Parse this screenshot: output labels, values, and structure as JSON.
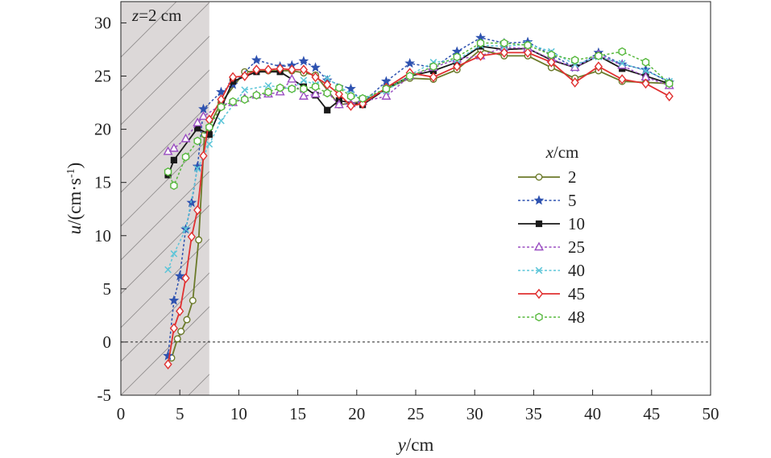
{
  "chart_data": {
    "type": "line",
    "xlabel_var": "y",
    "xlabel_unit": "/cm",
    "ylabel_var": "u",
    "ylabel_unit_main": "/(cm·s",
    "ylabel_unit_sup": "-1",
    "ylabel_unit_close": ")",
    "xlim": [
      0,
      50
    ],
    "ylim": [
      -5,
      32
    ],
    "xticks": [
      0,
      5,
      10,
      15,
      20,
      25,
      30,
      35,
      40,
      45,
      50
    ],
    "yticks": [
      -5,
      0,
      5,
      10,
      15,
      20,
      25,
      30
    ],
    "xtick_labels": [
      "0",
      "5",
      "10",
      "15",
      "20",
      "25",
      "30",
      "35",
      "40",
      "45",
      "50"
    ],
    "ytick_labels": [
      "-5",
      "0",
      "5",
      "10",
      "15",
      "20",
      "25",
      "30"
    ],
    "zero_line": 0,
    "shaded_region": {
      "x_from": 0,
      "x_to": 7.5,
      "label_var": "z",
      "label_rest": "=2 cm"
    },
    "legend_title_var": "x",
    "legend_title_unit": "/cm",
    "series": [
      {
        "name": "2",
        "color": "#6b7a2a",
        "dash": "solid",
        "marker": "circle",
        "x": [
          4.3,
          4.8,
          5.1,
          5.6,
          6.1,
          6.6,
          7.1,
          8.5,
          10.5,
          12.5,
          14.5,
          15.5,
          16.5,
          18.5,
          20.5,
          22.5,
          24.5,
          26.5,
          28.5,
          30.5,
          32.5,
          34.5,
          36.5,
          38.5,
          40.5,
          42.5,
          44.5,
          46.5
        ],
        "values": [
          -1.5,
          0.3,
          1.0,
          2.1,
          3.9,
          9.6,
          19.5,
          22.5,
          25.4,
          25.5,
          25.5,
          25.3,
          25.1,
          22.3,
          22.6,
          23.8,
          24.8,
          24.7,
          25.6,
          27.5,
          26.9,
          26.9,
          25.8,
          24.8,
          25.5,
          24.5,
          24.4,
          24.3
        ]
      },
      {
        "name": "5",
        "color": "#2e52b0",
        "dash": "dotted",
        "marker": "star",
        "x": [
          4.0,
          4.5,
          5.0,
          5.5,
          6.0,
          6.5,
          7.0,
          8.5,
          9.5,
          11.5,
          13.5,
          14.5,
          15.5,
          16.5,
          17.5,
          19.5,
          20.5,
          22.5,
          24.5,
          26.5,
          28.5,
          30.5,
          32.5,
          34.5,
          36.5,
          38.5,
          40.5,
          42.5,
          44.5,
          46.5
        ],
        "values": [
          -1.3,
          3.9,
          6.2,
          10.6,
          13.1,
          16.5,
          21.9,
          23.5,
          24.2,
          26.5,
          25.9,
          26.0,
          26.4,
          25.8,
          24.6,
          23.8,
          22.5,
          24.5,
          26.2,
          25.8,
          27.3,
          28.6,
          28.1,
          28.2,
          27.0,
          25.8,
          27.2,
          26.1,
          25.6,
          24.4
        ]
      },
      {
        "name": "10",
        "color": "#1a1a1a",
        "dash": "solid",
        "marker": "square",
        "x": [
          4.0,
          4.5,
          6.5,
          7.5,
          9.5,
          11.5,
          13.5,
          15.5,
          16.5,
          17.5,
          18.5,
          20.5,
          22.5,
          24.5,
          26.5,
          28.5,
          30.5,
          32.5,
          34.5,
          36.5,
          38.5,
          40.5,
          42.5,
          44.5,
          46.5
        ],
        "values": [
          15.7,
          17.1,
          20.1,
          19.5,
          24.5,
          25.4,
          25.4,
          24.0,
          23.2,
          21.8,
          22.7,
          22.3,
          23.8,
          25.0,
          25.5,
          26.3,
          27.8,
          27.5,
          27.6,
          26.5,
          25.8,
          26.9,
          25.7,
          25.0,
          24.3
        ]
      },
      {
        "name": "25",
        "color": "#9b4fc2",
        "dash": "dotted",
        "marker": "triangle",
        "x": [
          4.0,
          4.5,
          5.5,
          6.5,
          7.0,
          8.5,
          9.5,
          10.5,
          11.5,
          12.5,
          13.5,
          14.5,
          15.5,
          16.5,
          17.5,
          18.5,
          19.5,
          20.5,
          22.5,
          24.5,
          26.5,
          28.5,
          30.5,
          32.5,
          34.5,
          36.5,
          38.5,
          40.5,
          42.5,
          44.5,
          46.5
        ],
        "values": [
          17.9,
          18.2,
          19.1,
          20.6,
          21.2,
          22.3,
          22.5,
          22.9,
          23.2,
          23.3,
          23.5,
          24.7,
          23.1,
          23.3,
          23.5,
          22.3,
          22.4,
          22.6,
          23.1,
          25.0,
          25.8,
          26.6,
          26.9,
          27.7,
          27.6,
          26.6,
          25.8,
          27.0,
          26.0,
          24.9,
          24.1
        ]
      },
      {
        "name": "40",
        "color": "#5cc5d8",
        "dash": "dotted",
        "marker": "cross",
        "x": [
          4.0,
          4.5,
          5.5,
          6.5,
          7.5,
          8.5,
          10.5,
          12.5,
          14.5,
          15.5,
          16.5,
          17.5,
          19.5,
          20.5,
          22.5,
          24.5,
          26.5,
          28.5,
          30.5,
          32.5,
          34.5,
          36.5,
          38.5,
          40.5,
          42.5,
          44.5,
          46.5
        ],
        "values": [
          6.8,
          8.3,
          10.6,
          16.3,
          18.6,
          20.8,
          23.7,
          24.1,
          23.8,
          24.6,
          24.2,
          24.8,
          23.3,
          22.9,
          23.6,
          25.1,
          26.3,
          26.5,
          27.9,
          27.8,
          28.0,
          27.3,
          26.1,
          26.8,
          26.2,
          25.5,
          24.5
        ]
      },
      {
        "name": "45",
        "color": "#e03030",
        "dash": "solid",
        "marker": "diamond",
        "x": [
          4.0,
          4.5,
          5.0,
          5.5,
          6.0,
          6.5,
          7.0,
          7.5,
          8.5,
          9.5,
          10.5,
          11.5,
          12.5,
          13.5,
          14.5,
          15.5,
          16.5,
          17.5,
          18.5,
          19.5,
          20.5,
          22.5,
          24.5,
          26.5,
          28.5,
          30.5,
          32.5,
          34.5,
          36.5,
          38.5,
          40.5,
          42.5,
          44.5,
          46.5
        ],
        "values": [
          -2.1,
          1.3,
          2.9,
          6.0,
          9.9,
          12.4,
          17.5,
          20.9,
          22.8,
          24.9,
          25.0,
          25.6,
          25.6,
          25.7,
          25.6,
          25.6,
          24.9,
          24.2,
          23.3,
          22.2,
          22.4,
          23.9,
          25.3,
          24.9,
          25.9,
          26.9,
          27.2,
          27.2,
          26.3,
          24.4,
          25.9,
          24.7,
          24.3,
          23.1
        ]
      },
      {
        "name": "48",
        "color": "#56b83c",
        "dash": "dotted",
        "marker": "hexagon",
        "x": [
          4.0,
          4.5,
          5.5,
          6.5,
          7.5,
          8.5,
          9.5,
          10.5,
          11.5,
          12.5,
          13.5,
          14.5,
          15.5,
          16.5,
          17.5,
          18.5,
          19.5,
          20.5,
          22.5,
          24.5,
          26.5,
          28.5,
          30.5,
          32.5,
          34.5,
          36.5,
          38.5,
          40.5,
          42.5,
          44.5,
          46.5
        ],
        "values": [
          16.0,
          14.7,
          17.4,
          18.9,
          20.2,
          22.1,
          22.6,
          22.8,
          23.2,
          23.5,
          23.9,
          23.8,
          23.8,
          24.0,
          23.4,
          23.9,
          23.1,
          22.9,
          23.8,
          25.0,
          25.9,
          26.8,
          28.1,
          28.1,
          27.9,
          27.0,
          26.5,
          26.9,
          27.3,
          26.3,
          24.3
        ]
      }
    ]
  }
}
